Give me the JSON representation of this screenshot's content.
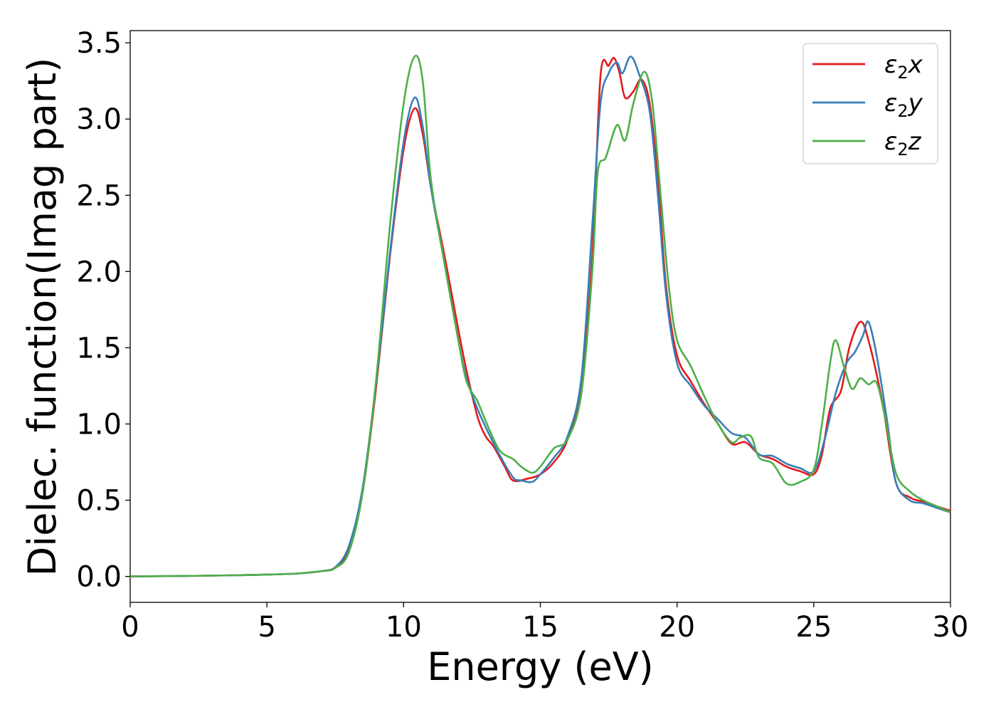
{
  "chart_data": {
    "type": "line",
    "xlabel": "Energy (eV)",
    "ylabel": "Dielec. function(Imag part)",
    "xlim": [
      0,
      30
    ],
    "ylim": [
      -0.17,
      3.58
    ],
    "xticks": [
      0,
      5,
      10,
      15,
      20,
      25,
      30
    ],
    "xtick_labels": [
      "0",
      "5",
      "10",
      "15",
      "20",
      "25",
      "30"
    ],
    "yticks": [
      0.0,
      0.5,
      1.0,
      1.5,
      2.0,
      2.5,
      3.0,
      3.5
    ],
    "ytick_labels": [
      "0.0",
      "0.5",
      "1.0",
      "1.5",
      "2.0",
      "2.5",
      "3.0",
      "3.5"
    ],
    "grid": false,
    "legend_position": "top-right",
    "series": [
      {
        "name": "ε₂x",
        "legend_base": "ε",
        "legend_sub": "2",
        "legend_var": "x",
        "color": "#e41a1c",
        "points": [
          [
            0,
            0
          ],
          [
            2,
            0.003
          ],
          [
            4,
            0.008
          ],
          [
            6,
            0.018
          ],
          [
            7,
            0.035
          ],
          [
            7.5,
            0.06
          ],
          [
            8,
            0.18
          ],
          [
            8.5,
            0.55
          ],
          [
            9,
            1.25
          ],
          [
            9.5,
            2.1
          ],
          [
            10,
            2.8
          ],
          [
            10.4,
            3.07
          ],
          [
            10.7,
            2.9
          ],
          [
            11,
            2.55
          ],
          [
            11.5,
            2.1
          ],
          [
            12,
            1.62
          ],
          [
            12.3,
            1.35
          ],
          [
            12.7,
            1.05
          ],
          [
            13,
            0.92
          ],
          [
            13.3,
            0.85
          ],
          [
            13.7,
            0.72
          ],
          [
            14,
            0.63
          ],
          [
            14.5,
            0.64
          ],
          [
            15,
            0.67
          ],
          [
            15.5,
            0.75
          ],
          [
            16,
            0.9
          ],
          [
            16.5,
            1.25
          ],
          [
            16.9,
            2.1
          ],
          [
            17.2,
            3.28
          ],
          [
            17.5,
            3.35
          ],
          [
            17.7,
            3.4
          ],
          [
            17.9,
            3.3
          ],
          [
            18.1,
            3.14
          ],
          [
            18.4,
            3.18
          ],
          [
            18.7,
            3.26
          ],
          [
            19,
            3.1
          ],
          [
            19.3,
            2.6
          ],
          [
            19.6,
            1.9
          ],
          [
            20,
            1.45
          ],
          [
            20.5,
            1.28
          ],
          [
            21,
            1.13
          ],
          [
            21.5,
            1.0
          ],
          [
            22,
            0.87
          ],
          [
            22.5,
            0.88
          ],
          [
            23,
            0.8
          ],
          [
            23.5,
            0.77
          ],
          [
            24,
            0.72
          ],
          [
            24.5,
            0.69
          ],
          [
            25,
            0.67
          ],
          [
            25.3,
            0.8
          ],
          [
            25.6,
            1.1
          ],
          [
            26,
            1.22
          ],
          [
            26.3,
            1.5
          ],
          [
            26.7,
            1.67
          ],
          [
            27,
            1.55
          ],
          [
            27.5,
            1.15
          ],
          [
            28,
            0.62
          ],
          [
            28.5,
            0.52
          ],
          [
            29,
            0.49
          ],
          [
            29.5,
            0.46
          ],
          [
            30,
            0.43
          ]
        ]
      },
      {
        "name": "ε₂y",
        "legend_base": "ε",
        "legend_sub": "2",
        "legend_var": "y",
        "color": "#377eb8",
        "points": [
          [
            0,
            0
          ],
          [
            2,
            0.003
          ],
          [
            4,
            0.008
          ],
          [
            6,
            0.018
          ],
          [
            7,
            0.035
          ],
          [
            7.5,
            0.06
          ],
          [
            8,
            0.2
          ],
          [
            8.5,
            0.58
          ],
          [
            9,
            1.28
          ],
          [
            9.5,
            2.12
          ],
          [
            10,
            2.85
          ],
          [
            10.4,
            3.14
          ],
          [
            10.7,
            2.95
          ],
          [
            11,
            2.55
          ],
          [
            11.5,
            2.05
          ],
          [
            12,
            1.55
          ],
          [
            12.3,
            1.3
          ],
          [
            12.7,
            1.1
          ],
          [
            13,
            0.98
          ],
          [
            13.5,
            0.8
          ],
          [
            14,
            0.65
          ],
          [
            14.3,
            0.63
          ],
          [
            14.7,
            0.62
          ],
          [
            15,
            0.67
          ],
          [
            15.5,
            0.78
          ],
          [
            16,
            0.92
          ],
          [
            16.5,
            1.3
          ],
          [
            16.9,
            2.3
          ],
          [
            17.2,
            3.1
          ],
          [
            17.5,
            3.3
          ],
          [
            17.8,
            3.37
          ],
          [
            18,
            3.3
          ],
          [
            18.3,
            3.41
          ],
          [
            18.6,
            3.3
          ],
          [
            19,
            3.05
          ],
          [
            19.3,
            2.5
          ],
          [
            19.6,
            1.85
          ],
          [
            20,
            1.4
          ],
          [
            20.5,
            1.25
          ],
          [
            21,
            1.12
          ],
          [
            21.5,
            1.03
          ],
          [
            22,
            0.94
          ],
          [
            22.5,
            0.91
          ],
          [
            23,
            0.8
          ],
          [
            23.5,
            0.79
          ],
          [
            24,
            0.74
          ],
          [
            24.5,
            0.71
          ],
          [
            25,
            0.69
          ],
          [
            25.4,
            0.9
          ],
          [
            25.8,
            1.2
          ],
          [
            26.2,
            1.4
          ],
          [
            26.5,
            1.47
          ],
          [
            26.8,
            1.58
          ],
          [
            27,
            1.67
          ],
          [
            27.3,
            1.45
          ],
          [
            27.7,
            1.0
          ],
          [
            28,
            0.62
          ],
          [
            28.5,
            0.5
          ],
          [
            29,
            0.48
          ],
          [
            29.5,
            0.45
          ],
          [
            30,
            0.42
          ]
        ]
      },
      {
        "name": "ε₂z",
        "legend_base": "ε",
        "legend_sub": "2",
        "legend_var": "z",
        "color": "#4daf4a",
        "points": [
          [
            0,
            0
          ],
          [
            2,
            0.003
          ],
          [
            4,
            0.008
          ],
          [
            6,
            0.018
          ],
          [
            7,
            0.035
          ],
          [
            7.5,
            0.055
          ],
          [
            8,
            0.16
          ],
          [
            8.5,
            0.55
          ],
          [
            9,
            1.3
          ],
          [
            9.5,
            2.3
          ],
          [
            10,
            3.1
          ],
          [
            10.4,
            3.41
          ],
          [
            10.7,
            3.25
          ],
          [
            11,
            2.6
          ],
          [
            11.5,
            2.05
          ],
          [
            12,
            1.55
          ],
          [
            12.3,
            1.28
          ],
          [
            12.7,
            1.15
          ],
          [
            13,
            1.02
          ],
          [
            13.5,
            0.83
          ],
          [
            14,
            0.77
          ],
          [
            14.3,
            0.72
          ],
          [
            14.7,
            0.68
          ],
          [
            15,
            0.72
          ],
          [
            15.5,
            0.84
          ],
          [
            16,
            0.9
          ],
          [
            16.5,
            1.2
          ],
          [
            16.9,
            2.0
          ],
          [
            17.1,
            2.65
          ],
          [
            17.4,
            2.75
          ],
          [
            17.8,
            2.96
          ],
          [
            18.1,
            2.86
          ],
          [
            18.4,
            3.1
          ],
          [
            18.8,
            3.31
          ],
          [
            19.1,
            3.1
          ],
          [
            19.4,
            2.5
          ],
          [
            19.7,
            1.9
          ],
          [
            20,
            1.55
          ],
          [
            20.5,
            1.38
          ],
          [
            21,
            1.18
          ],
          [
            21.5,
            1.0
          ],
          [
            22,
            0.88
          ],
          [
            22.3,
            0.91
          ],
          [
            22.7,
            0.92
          ],
          [
            23,
            0.78
          ],
          [
            23.5,
            0.74
          ],
          [
            24,
            0.61
          ],
          [
            24.5,
            0.62
          ],
          [
            25,
            0.7
          ],
          [
            25.3,
            1.0
          ],
          [
            25.6,
            1.4
          ],
          [
            25.8,
            1.55
          ],
          [
            26.1,
            1.38
          ],
          [
            26.4,
            1.23
          ],
          [
            26.7,
            1.3
          ],
          [
            27,
            1.26
          ],
          [
            27.3,
            1.27
          ],
          [
            27.6,
            1.05
          ],
          [
            28,
            0.68
          ],
          [
            28.5,
            0.56
          ],
          [
            29,
            0.5
          ],
          [
            29.5,
            0.46
          ],
          [
            30,
            0.42
          ]
        ]
      }
    ]
  }
}
